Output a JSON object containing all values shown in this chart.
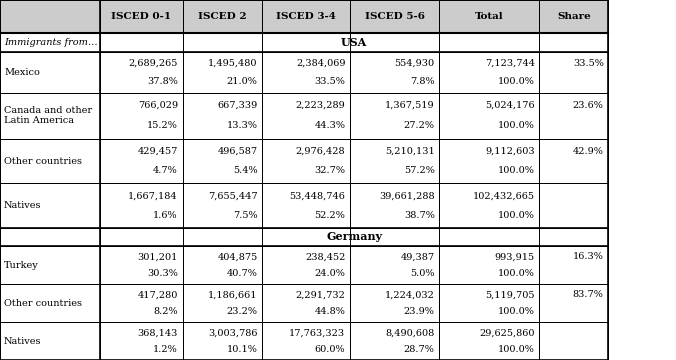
{
  "col_headers": [
    "ISCED 0-1",
    "ISCED 2",
    "ISCED 3-4",
    "ISCED 5-6",
    "Total",
    "Share"
  ],
  "row_label_header": "Immigrants from…",
  "sections": [
    {
      "section_title": "USA",
      "rows": [
        {
          "label": "Mexico",
          "values": [
            "2,689,265",
            "1,495,480",
            "2,384,069",
            "554,930",
            "7,123,744",
            "33.5%"
          ],
          "pcts": [
            "37.8%",
            "21.0%",
            "33.5%",
            "7.8%",
            "100.0%",
            ""
          ]
        },
        {
          "label": "Canada and other\nLatin America",
          "values": [
            "766,029",
            "667,339",
            "2,223,289",
            "1,367,519",
            "5,024,176",
            "23.6%"
          ],
          "pcts": [
            "15.2%",
            "13.3%",
            "44.3%",
            "27.2%",
            "100.0%",
            ""
          ]
        },
        {
          "label": "Other countries",
          "values": [
            "429,457",
            "496,587",
            "2,976,428",
            "5,210,131",
            "9,112,603",
            "42.9%"
          ],
          "pcts": [
            "4.7%",
            "5.4%",
            "32.7%",
            "57.2%",
            "100.0%",
            ""
          ]
        },
        {
          "label": "Natives",
          "values": [
            "1,667,184",
            "7,655,447",
            "53,448,746",
            "39,661,288",
            "102,432,665",
            ""
          ],
          "pcts": [
            "1.6%",
            "7.5%",
            "52.2%",
            "38.7%",
            "100.0%",
            ""
          ]
        }
      ]
    },
    {
      "section_title": "Germany",
      "rows": [
        {
          "label": "Turkey",
          "values": [
            "301,201",
            "404,875",
            "238,452",
            "49,387",
            "993,915",
            "16.3%"
          ],
          "pcts": [
            "30.3%",
            "40.7%",
            "24.0%",
            "5.0%",
            "100.0%",
            ""
          ]
        },
        {
          "label": "Other countries",
          "values": [
            "417,280",
            "1,186,661",
            "2,291,732",
            "1,224,032",
            "5,119,705",
            "83.7%"
          ],
          "pcts": [
            "8.2%",
            "23.2%",
            "44.8%",
            "23.9%",
            "100.0%",
            ""
          ]
        },
        {
          "label": "Natives",
          "values": [
            "368,143",
            "3,003,786",
            "17,763,323",
            "8,490,608",
            "29,625,860",
            ""
          ],
          "pcts": [
            "1.2%",
            "10.1%",
            "60.0%",
            "28.7%",
            "100.0%",
            ""
          ]
        }
      ]
    }
  ],
  "figsize": [
    6.76,
    3.6
  ],
  "dpi": 100,
  "font_size": 7.0,
  "header_font_size": 7.5,
  "section_font_size": 8.0,
  "bg_header": "#c8c8c8",
  "bg_white": "#ffffff"
}
